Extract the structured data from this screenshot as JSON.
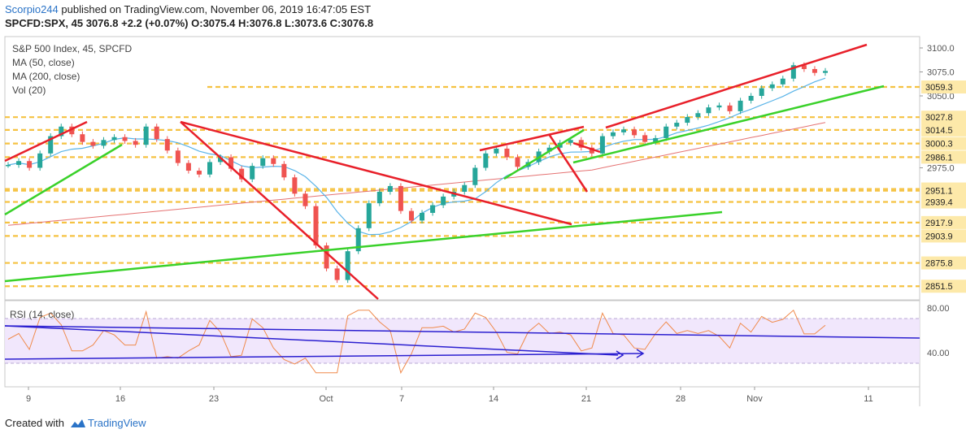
{
  "header": {
    "publisher": "Scorpio244",
    "published_text": "published on TradingView.com, November 06, 2019 16:47:05 EST",
    "symbol_line": "SPCFD:SPX, 45",
    "last": "3076.8",
    "change": "+2.2 (+0.07%)",
    "ohlc": "O:3075.4 H:3076.8 L:3073.6 C:3076.8"
  },
  "legend": {
    "title": "S&P 500 Index, 45, SPCFD",
    "ma50": "MA (50, close)",
    "ma200": "MA (200, close)",
    "vol": "Vol (20)",
    "rsi": "RSI (14, close)"
  },
  "footer": {
    "created_with": "Created with",
    "brand": "TradingView"
  },
  "colors": {
    "up": "#26a69a",
    "down": "#ef5350",
    "trend_red": "#e8202a",
    "trend_green": "#3ad12a",
    "level": "#f5c242",
    "ma50": "#5ab4e8",
    "ma200": "#e57373",
    "rsi": "#f08a4b",
    "rsi_band": "#e9dcfb",
    "rsi_trend": "#2b1fd0"
  },
  "chart_data": {
    "type": "candlestick",
    "price_axis": {
      "ticks": [
        "3100.0",
        "3075.0",
        "3050.0",
        "2975.0"
      ],
      "ylim": [
        2840,
        3110
      ]
    },
    "levels": [
      "3059.3",
      "3027.8",
      "3014.5",
      "3000.3",
      "2986.1",
      "2952.9",
      "2951.1",
      "2939.4",
      "2917.9",
      "2903.9",
      "2875.8",
      "2851.5"
    ],
    "x_ticks": [
      "9",
      "16",
      "23",
      "Oct",
      "7",
      "14",
      "21",
      "28",
      "Nov",
      "11"
    ],
    "rsi_axis": {
      "ticks": [
        "80.00",
        "40.00"
      ],
      "bands": [
        70,
        30
      ]
    },
    "close_series_sketch": [
      2978,
      2982,
      2975,
      2990,
      3008,
      3018,
      3010,
      3002,
      2998,
      3004,
      3007,
      3003,
      2999,
      3018,
      3005,
      2993,
      2980,
      2972,
      2968,
      2981,
      2986,
      2974,
      2963,
      2977,
      2985,
      2979,
      2965,
      2948,
      2935,
      2894,
      2870,
      2858,
      2888,
      2912,
      2938,
      2950,
      2956,
      2930,
      2920,
      2928,
      2936,
      2945,
      2950,
      2957,
      2975,
      2990,
      2995,
      2986,
      2976,
      2981,
      2992,
      2996,
      3001,
      3004,
      2996,
      2990,
      3008,
      3012,
      3015,
      3009,
      3002,
      3006,
      3018,
      3022,
      3028,
      3032,
      3038,
      3040,
      3034,
      3045,
      3050,
      3058,
      3062,
      3068,
      3082,
      3078,
      3074,
      3076
    ]
  }
}
